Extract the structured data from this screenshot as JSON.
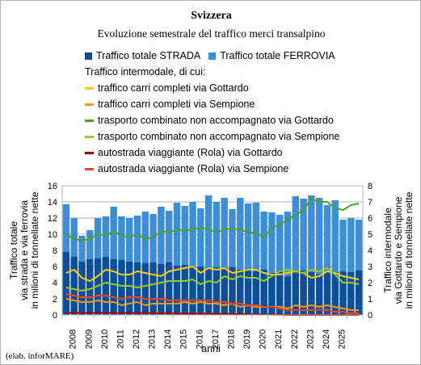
{
  "chart_data": {
    "type": "bar",
    "title": "Svizzera",
    "subtitle": "Evoluzione semestrale del traffico merci transalpino",
    "xlabel": "anni",
    "ylabel_left": [
      "Traffico totale",
      "via strada e via ferrovia",
      "in milioni di tonnellate nette"
    ],
    "ylabel_right": [
      "Traffico intermodale",
      "via Gottardo e Sempione",
      "in milioni di tonnellate nette"
    ],
    "ylim_left": [
      0,
      16
    ],
    "ylim_right": [
      0,
      8
    ],
    "yticks_left": [
      "0",
      "2",
      "4",
      "6",
      "8",
      "10",
      "12",
      "14",
      "16"
    ],
    "yticks_right": [
      "0",
      "1",
      "2",
      "3",
      "4",
      "5",
      "6",
      "7",
      "8"
    ],
    "year_labels": [
      "2008",
      "2009",
      "2010",
      "2011",
      "2012",
      "2013",
      "2014",
      "2015",
      "2016",
      "2017",
      "2018",
      "2019",
      "2020",
      "2021",
      "2022",
      "2023",
      "2024",
      "2025"
    ],
    "legend_intro": "Traffico intermodale, di cui:",
    "credit": "(elab. inforMARE)",
    "bar_series": [
      {
        "name": "Traffico totale STRADA",
        "color": "#0b4f9c",
        "axis": "left",
        "stacked_front": true,
        "values": [
          7.8,
          7.2,
          6.6,
          6.9,
          7.0,
          7.2,
          6.9,
          6.8,
          6.6,
          6.5,
          6.4,
          6.5,
          6.3,
          6.5,
          6.1,
          6.2,
          5.9,
          6.0,
          5.8,
          5.9,
          5.8,
          5.9,
          5.6,
          5.7,
          5.4,
          5.6,
          5.2,
          5.4,
          4.8,
          5.3,
          5.5,
          5.3,
          5.0,
          5.3,
          5.3,
          5.4,
          5.3,
          5.5
        ]
      },
      {
        "name": "Traffico totale FERROVIA",
        "color": "#3d8ed8",
        "axis": "left",
        "values": [
          13.7,
          12.0,
          9.8,
          10.5,
          12.0,
          12.2,
          13.4,
          12.2,
          12.0,
          12.3,
          12.8,
          12.5,
          13.4,
          12.9,
          13.9,
          13.5,
          14.0,
          13.2,
          14.8,
          14.0,
          14.5,
          13.1,
          14.5,
          13.8,
          13.9,
          12.8,
          12.7,
          12.4,
          12.8,
          14.7,
          14.4,
          14.8,
          14.5,
          13.6,
          14.2,
          11.8,
          12.0,
          11.8
        ]
      }
    ],
    "line_series": [
      {
        "name": "traffico carri completi via Gottardo",
        "color": "#ffcc00",
        "axis": "right",
        "values": [
          2.6,
          2.8,
          2.3,
          2.1,
          2.4,
          2.8,
          2.7,
          2.5,
          2.5,
          2.7,
          2.6,
          2.5,
          2.4,
          2.7,
          2.8,
          2.9,
          3.0,
          2.6,
          2.9,
          2.8,
          2.9,
          2.6,
          2.7,
          2.8,
          2.8,
          2.6,
          2.5,
          2.5,
          2.6,
          2.7,
          2.6,
          2.3,
          2.4,
          2.7,
          2.6,
          2.4,
          2.3,
          2.2
        ]
      },
      {
        "name": "traffico carri completi via Sempione",
        "color": "#ff9900",
        "axis": "right",
        "values": [
          1.0,
          0.9,
          0.8,
          0.8,
          0.9,
          0.8,
          0.8,
          0.6,
          0.7,
          0.8,
          0.6,
          0.7,
          0.7,
          0.7,
          0.7,
          0.8,
          0.7,
          0.8,
          0.7,
          0.7,
          0.6,
          0.7,
          0.5,
          0.6,
          0.5,
          0.5,
          0.5,
          0.5,
          0.4,
          0.6,
          0.5,
          0.6,
          0.5,
          0.6,
          0.5,
          0.4,
          0.3,
          0.3
        ]
      },
      {
        "name": "trasporto combinato non accompagnato via Gottardo",
        "color": "#4ca128",
        "axis": "right",
        "values": [
          5.0,
          4.7,
          4.6,
          4.7,
          5.0,
          4.9,
          5.2,
          4.9,
          4.8,
          5.0,
          4.7,
          4.8,
          5.2,
          5.1,
          5.3,
          5.2,
          5.3,
          5.4,
          5.3,
          5.1,
          5.3,
          5.3,
          5.3,
          5.1,
          5.1,
          4.8,
          5.4,
          5.6,
          5.9,
          6.2,
          6.5,
          7.2,
          7.0,
          7.0,
          6.6,
          6.5,
          6.8,
          6.9
        ]
      },
      {
        "name": "trasporto combinato non accompagnato via Sempione",
        "color": "#9acd1c",
        "axis": "right",
        "values": [
          1.7,
          1.6,
          1.5,
          1.6,
          1.8,
          2.0,
          1.9,
          1.8,
          1.8,
          1.7,
          1.8,
          1.9,
          2.0,
          2.1,
          2.1,
          2.1,
          2.2,
          1.9,
          2.1,
          2.0,
          2.4,
          2.2,
          2.4,
          2.3,
          2.3,
          2.1,
          2.4,
          2.7,
          2.8,
          2.7,
          2.6,
          2.8,
          2.7,
          2.9,
          2.5,
          2.0,
          2.0,
          1.9
        ]
      },
      {
        "name": "autostrada viaggiante (Rola) via Gottardo",
        "color": "#a30000",
        "axis": "right",
        "values": [
          0.13,
          0.14,
          0.12,
          0.12,
          0.13,
          0.13,
          0.12,
          0.12,
          0.12,
          0.12,
          0.12,
          0.11,
          0.1,
          0.1,
          0.09,
          0.09,
          0.09,
          0.08,
          0.08,
          0.07,
          0.07,
          0.06,
          0.05,
          0.04,
          0.03,
          0.03,
          0.02,
          0.01,
          0,
          0,
          0,
          0,
          0,
          0,
          0,
          0,
          0,
          0
        ]
      },
      {
        "name": "autostrada viaggiante (Rola) via Sempione",
        "color": "#ff4411",
        "axis": "right",
        "values": [
          1.3,
          1.2,
          1.1,
          1.1,
          1.2,
          1.2,
          1.1,
          1.0,
          1.1,
          1.1,
          1.0,
          1.0,
          1.0,
          0.9,
          0.9,
          0.9,
          0.9,
          0.9,
          0.9,
          0.8,
          0.8,
          0.7,
          0.7,
          0.6,
          0.6,
          0.5,
          0.5,
          0.4,
          0.3,
          0.3,
          0.3,
          0.3,
          0.3,
          0.3,
          0.2,
          0.2,
          0.1,
          0.1
        ]
      }
    ],
    "grid": true,
    "legend_position": "top"
  }
}
